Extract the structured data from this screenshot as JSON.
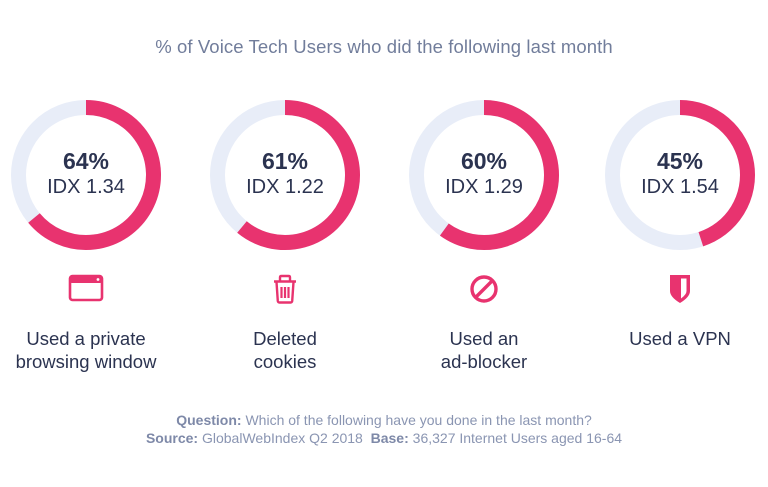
{
  "colors": {
    "accent": "#e8336f",
    "track": "#e8edf8",
    "text_dark": "#2b3350",
    "title": "#717d9b",
    "footer": "#8a95b2"
  },
  "chart_data": {
    "type": "pie",
    "subtype": "donut",
    "title": "% of Voice Tech Users who did the following last month",
    "categories": [
      "Used a private browsing window",
      "Deleted cookies",
      "Used an ad-blocker",
      "Used a VPN"
    ],
    "values": [
      64,
      61,
      60,
      45
    ],
    "unit": "%",
    "idx_values": [
      1.34,
      1.22,
      1.29,
      1.54
    ],
    "max": 100
  },
  "panels": [
    {
      "pct_text": "64%",
      "idx_text": "IDX 1.34",
      "icon": "browser-window-icon",
      "label_lines": [
        "Used a private",
        "browsing window"
      ]
    },
    {
      "pct_text": "61%",
      "idx_text": "IDX 1.22",
      "icon": "trash-icon",
      "label_lines": [
        "Deleted",
        "cookies"
      ]
    },
    {
      "pct_text": "60%",
      "idx_text": "IDX 1.29",
      "icon": "block-icon",
      "label_lines": [
        "Used an",
        "ad-blocker"
      ]
    },
    {
      "pct_text": "45%",
      "idx_text": "IDX 1.54",
      "icon": "shield-icon",
      "label_lines": [
        "Used a VPN"
      ]
    }
  ],
  "footer": {
    "question_label": "Question:",
    "question_text": " Which of the following have you done in the last month?",
    "source_label": "Source:",
    "source_text": " GlobalWebIndex Q2 2018  ",
    "base_label": "Base:",
    "base_text": " 36,327 Internet Users aged 16-64"
  }
}
